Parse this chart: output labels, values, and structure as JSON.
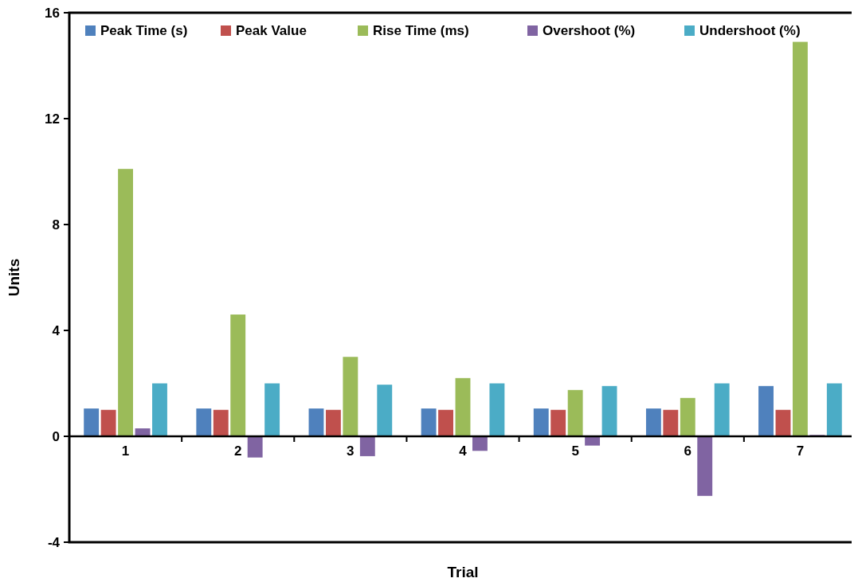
{
  "chart_data": {
    "type": "bar",
    "xlabel": "Trial",
    "ylabel": "Units",
    "categories": [
      "1",
      "2",
      "3",
      "4",
      "5",
      "6",
      "7"
    ],
    "series": [
      {
        "name": "Peak Time (s)",
        "color": "#4f81bd",
        "values": [
          1.05,
          1.05,
          1.05,
          1.05,
          1.05,
          1.05,
          1.9
        ]
      },
      {
        "name": "Peak Value",
        "color": "#c0504d",
        "values": [
          1,
          1,
          1,
          1,
          1,
          1,
          1
        ]
      },
      {
        "name": "Rise Time (ms)",
        "color": "#9bbb59",
        "values": [
          10.1,
          4.6,
          3,
          2.2,
          1.75,
          1.45,
          14.9
        ]
      },
      {
        "name": "Overshoot (%)",
        "color": "#8064a2",
        "values": [
          0.3,
          -0.8,
          -0.75,
          -0.55,
          -0.35,
          -2.25,
          0.05
        ]
      },
      {
        "name": "Undershoot (%)",
        "color": "#4bacc6",
        "values": [
          2,
          2,
          1.95,
          2,
          1.9,
          2,
          2
        ]
      }
    ],
    "ylim": [
      -4,
      16
    ],
    "yticks": [
      -4,
      0,
      4,
      8,
      12,
      16
    ],
    "grid": false,
    "legend": "top"
  }
}
